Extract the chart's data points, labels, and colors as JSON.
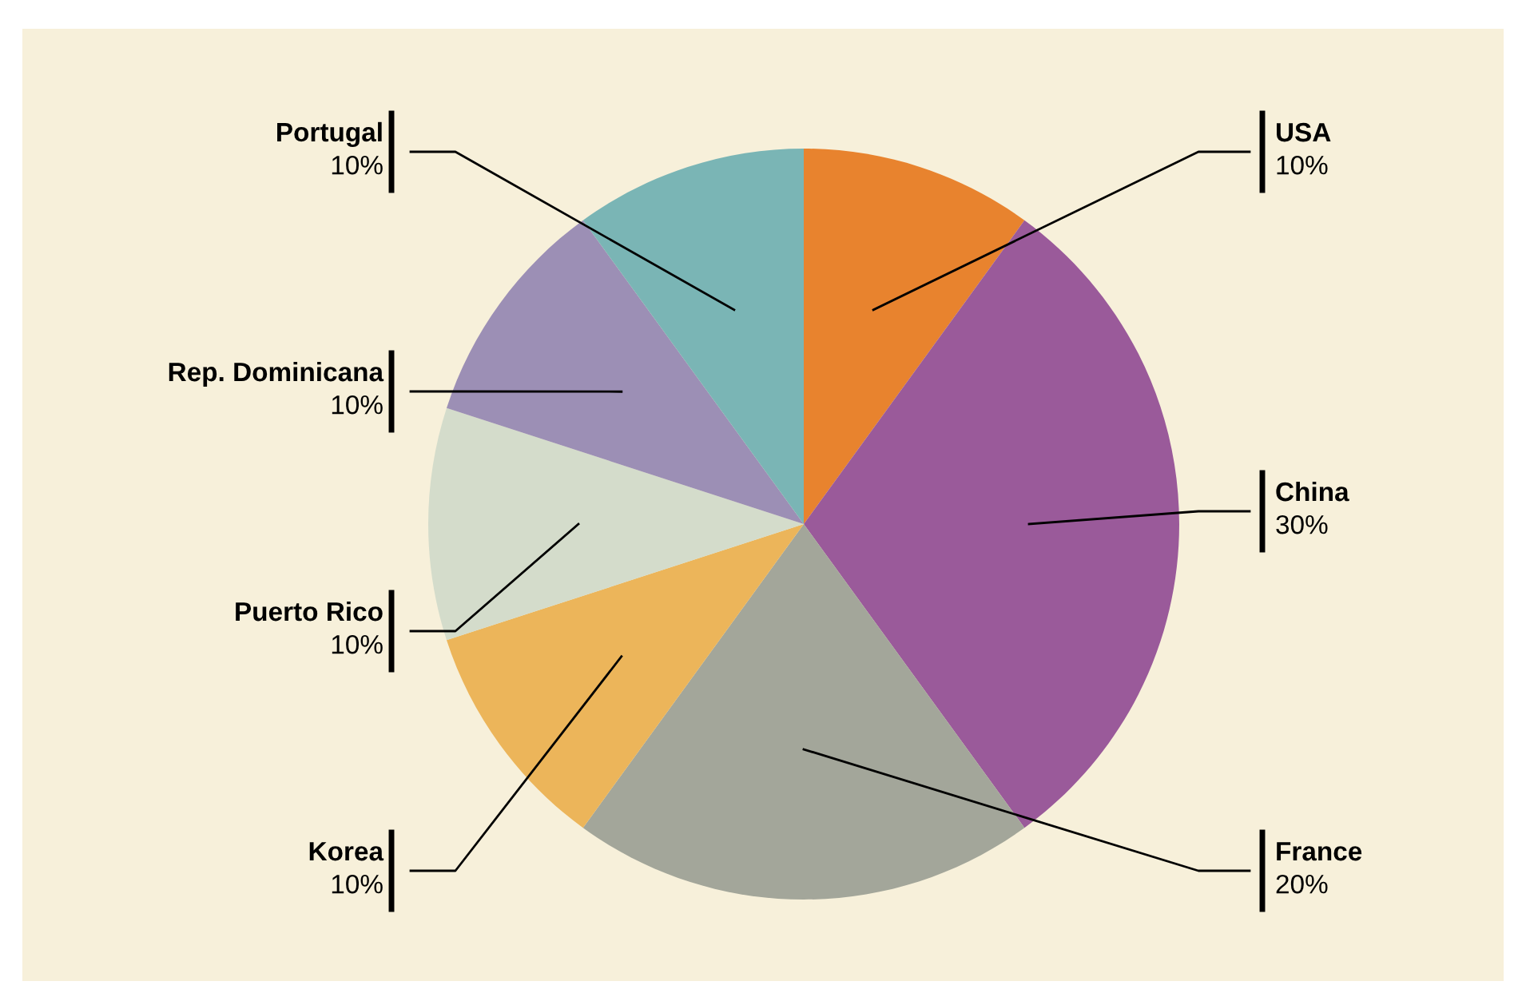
{
  "chart_data": {
    "type": "pie",
    "categories": [
      "USA",
      "China",
      "France",
      "Korea",
      "Puerto Rico",
      "Rep. Dominicana",
      "Portugal"
    ],
    "values": [
      10,
      30,
      20,
      10,
      10,
      10,
      10
    ],
    "colors": [
      "#e8832e",
      "#9a5a9a",
      "#a3a69a",
      "#ecb55a",
      "#d4dccb",
      "#9c8fb5",
      "#7ab5b5"
    ],
    "value_labels": [
      "10%",
      "30%",
      "20%",
      "10%",
      "10%",
      "10%",
      "10%"
    ],
    "legend": false
  }
}
